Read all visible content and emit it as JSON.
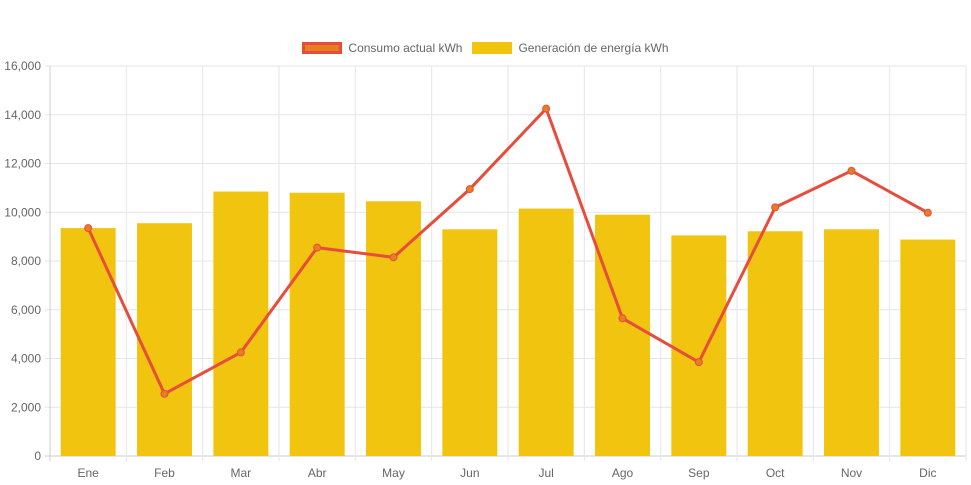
{
  "chart_data": {
    "type": "bar",
    "categories": [
      "Ene",
      "Feb",
      "Mar",
      "Abr",
      "May",
      "Jun",
      "Jul",
      "Ago",
      "Sep",
      "Oct",
      "Nov",
      "Dic"
    ],
    "series": [
      {
        "name": "Consumo actual kWh",
        "kind": "line",
        "color": "#e74c3c",
        "point_color": "#e67e22",
        "values": [
          9350,
          2550,
          4250,
          8550,
          8150,
          10950,
          14250,
          5650,
          3850,
          10200,
          11700,
          9980
        ]
      },
      {
        "name": "Generación de energía kWh",
        "kind": "bar",
        "color": "#f1c40f",
        "values": [
          9350,
          9550,
          10850,
          10800,
          10450,
          9300,
          10150,
          9900,
          9050,
          9220,
          9300,
          8880
        ]
      }
    ],
    "ylim": [
      0,
      16000
    ],
    "yticks": [
      "0",
      "2,000",
      "4,000",
      "6,000",
      "8,000",
      "10,000",
      "12,000",
      "14,000",
      "16,000"
    ],
    "legend_position": "top-center",
    "grid": true
  }
}
